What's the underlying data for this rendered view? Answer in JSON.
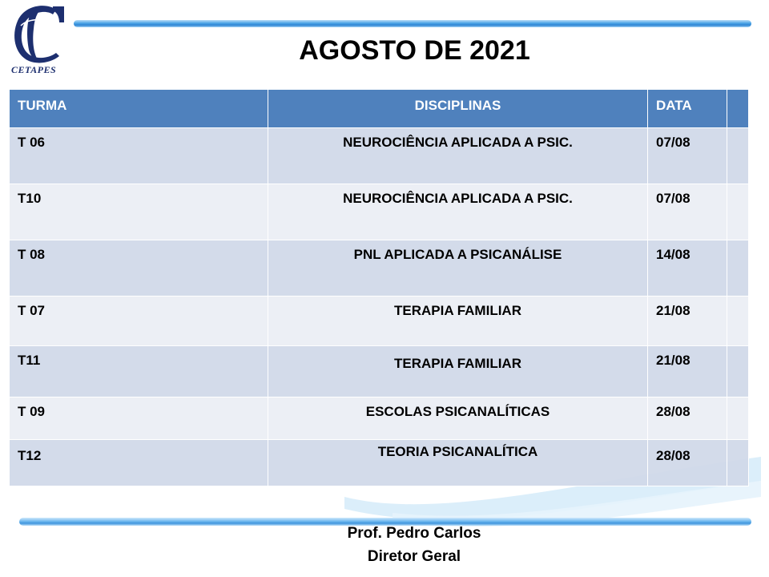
{
  "logo": {
    "text": "CETAPES"
  },
  "title": "AGOSTO DE 2021",
  "table": {
    "headers": {
      "turma": "TURMA",
      "disciplinas": "DISCIPLINAS",
      "data": "DATA",
      "extra": ""
    },
    "rows": [
      {
        "turma": "T 06",
        "disciplina": "NEUROCIÊNCIA APLICADA A PSIC.",
        "data": "07/08"
      },
      {
        "turma": "T10",
        "disciplina": "NEUROCIÊNCIA APLICADA A PSIC.",
        "data": "07/08"
      },
      {
        "turma": "T 08",
        "disciplina": "PNL APLICADA A PSICANÁLISE",
        "data": "14/08"
      },
      {
        "turma": "T 07",
        "disciplina": "TERAPIA FAMILIAR",
        "data": "21/08"
      },
      {
        "turma": "T11",
        "disciplina": "TERAPIA FAMILIAR",
        "data": "21/08"
      },
      {
        "turma": "T 09",
        "disciplina": "ESCOLAS PSICANALÍTICAS",
        "data": "28/08"
      },
      {
        "turma": "T12",
        "disciplina": "TEORIA PSICANALÍTICA",
        "data": "28/08"
      }
    ]
  },
  "signature": {
    "name": "Prof. Pedro Carlos",
    "role": "Diretor Geral"
  },
  "colors": {
    "header_blue": "#4f81bd",
    "row_dark": "#d0d8e8",
    "row_light": "#e9edf4",
    "logo_navy": "#1d2f6f"
  }
}
